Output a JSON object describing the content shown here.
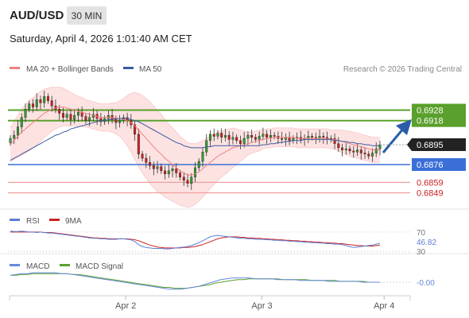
{
  "header": {
    "symbol": "AUD/USD",
    "interval": "30 MIN",
    "datetime": "Saturday, April 4, 2026 1:01:40 AM CET"
  },
  "legend": {
    "ma20": "MA 20 + Bollinger Bands",
    "ma50": "MA 50",
    "copyright": "Research © 2026 Trading Central"
  },
  "colors": {
    "ma20": "#f08080",
    "ma50": "#3a5ba0",
    "bollinger": "#fde2e2",
    "resistance": "#5aa02c",
    "support": "#3a6fd8",
    "support_extra": "#f0a0a0",
    "price_box": "#222222",
    "arrow": "#2a5ca8",
    "rsi": "#5b7fd6",
    "rsi_ma": "#cc2222",
    "macd": "#6688dd",
    "macd_signal": "#5aa02c",
    "candle_up": "#2e9e2e",
    "candle_down": "#cc2222"
  },
  "chart_data": [
    {
      "type": "candlestick",
      "name": "price",
      "y_range": [
        0.6838,
        0.6955
      ],
      "current_price": "0.6895",
      "levels": [
        {
          "value": 0.6928,
          "label": "0.6928",
          "kind": "resistance"
        },
        {
          "value": 0.6918,
          "label": "0.6918",
          "kind": "resistance"
        },
        {
          "value": 0.6876,
          "label": "0.6876",
          "kind": "support"
        },
        {
          "value": 0.6859,
          "label": "0.6859",
          "kind": "support2"
        },
        {
          "value": 0.6849,
          "label": "0.6849",
          "kind": "support2"
        }
      ],
      "close": [
        0.6901,
        0.6904,
        0.6912,
        0.6921,
        0.6929,
        0.6934,
        0.6931,
        0.6938,
        0.6935,
        0.6941,
        0.6937,
        0.6932,
        0.6929,
        0.6925,
        0.6921,
        0.6924,
        0.6919,
        0.6923,
        0.6926,
        0.6922,
        0.6918,
        0.6921,
        0.6924,
        0.692,
        0.6917,
        0.692,
        0.6923,
        0.6919,
        0.6916,
        0.6918,
        0.6921,
        0.6918,
        0.6914,
        0.6905,
        0.6886,
        0.6882,
        0.6878,
        0.6875,
        0.6872,
        0.6874,
        0.687,
        0.6867,
        0.687,
        0.6872,
        0.6868,
        0.6864,
        0.6861,
        0.6858,
        0.6864,
        0.6873,
        0.6879,
        0.6888,
        0.6899,
        0.6905,
        0.6903,
        0.6906,
        0.6902,
        0.6904,
        0.69,
        0.6902,
        0.6899,
        0.6896,
        0.6901,
        0.6904,
        0.6902,
        0.69,
        0.6903,
        0.6905,
        0.6902,
        0.6904,
        0.6903,
        0.6901,
        0.69,
        0.6902,
        0.6899,
        0.6901,
        0.6902,
        0.69,
        0.6901,
        0.6903,
        0.6902,
        0.6901,
        0.6903,
        0.6902,
        0.69,
        0.6901,
        0.6896,
        0.6892,
        0.689,
        0.6891,
        0.6889,
        0.6888,
        0.689,
        0.6887,
        0.6886,
        0.6884,
        0.6887,
        0.6891,
        0.6895
      ],
      "ma20": [
        0.6895,
        0.6899,
        0.6903,
        0.6907,
        0.691,
        0.6913,
        0.6916,
        0.6919,
        0.6922,
        0.6925,
        0.6927,
        0.6929,
        0.693,
        0.6931,
        0.6931,
        0.693,
        0.6929,
        0.6928,
        0.6927,
        0.6926,
        0.6925,
        0.6924,
        0.6923,
        0.6922,
        0.6921,
        0.6921,
        0.6921,
        0.6921,
        0.692,
        0.692,
        0.6919,
        0.6918,
        0.6916,
        0.6913,
        0.6909,
        0.6905,
        0.6901,
        0.6897,
        0.6893,
        0.6889,
        0.6886,
        0.6882,
        0.6879,
        0.6876,
        0.6873,
        0.687,
        0.6868,
        0.6866,
        0.6866,
        0.6867,
        0.6869,
        0.6872,
        0.6875,
        0.6878,
        0.6881,
        0.6884,
        0.6886,
        0.6888,
        0.689,
        0.6892,
        0.6893,
        0.6894,
        0.6895,
        0.6896,
        0.6897,
        0.6898,
        0.6899,
        0.69,
        0.6901,
        0.6901,
        0.6902,
        0.6902,
        0.6902,
        0.6902,
        0.6902,
        0.6902,
        0.6901,
        0.6901,
        0.6901,
        0.6901,
        0.6901,
        0.6901,
        0.6901,
        0.6901,
        0.6901,
        0.69,
        0.69,
        0.6899,
        0.6898,
        0.6897,
        0.6896,
        0.6895,
        0.6894,
        0.6893,
        0.6892,
        0.6891,
        0.689,
        0.689,
        0.689
      ],
      "ma50": [
        0.688,
        0.6882,
        0.6884,
        0.6886,
        0.6888,
        0.689,
        0.6892,
        0.6894,
        0.6896,
        0.6898,
        0.69,
        0.6902,
        0.6904,
        0.6905,
        0.6907,
        0.6908,
        0.691,
        0.6911,
        0.6912,
        0.6913,
        0.6914,
        0.6915,
        0.6916,
        0.6917,
        0.6918,
        0.6918,
        0.6919,
        0.6919,
        0.692,
        0.692,
        0.692,
        0.692,
        0.6919,
        0.6918,
        0.6917,
        0.6915,
        0.6913,
        0.6911,
        0.6909,
        0.6907,
        0.6905,
        0.6903,
        0.6901,
        0.6899,
        0.6897,
        0.6896,
        0.6894,
        0.6893,
        0.6892,
        0.6892,
        0.6892,
        0.6892,
        0.6893,
        0.6893,
        0.6894,
        0.6894,
        0.6894,
        0.6894,
        0.6894,
        0.6894,
        0.6894,
        0.6894,
        0.6894,
        0.6894,
        0.6894,
        0.6894,
        0.6894,
        0.6895,
        0.6895,
        0.6896,
        0.6896,
        0.6897,
        0.6897,
        0.6898,
        0.6898,
        0.6899,
        0.6899,
        0.6899,
        0.69,
        0.69,
        0.69,
        0.69,
        0.69,
        0.69,
        0.69,
        0.69,
        0.6899,
        0.6899,
        0.6898,
        0.6898,
        0.6897,
        0.6897,
        0.6896,
        0.6896,
        0.6895,
        0.6895,
        0.6894,
        0.6894,
        0.6894
      ],
      "band_width": [
        0.0016,
        0.0018,
        0.002,
        0.0022,
        0.0023,
        0.0024,
        0.0024,
        0.0024,
        0.0024,
        0.0023,
        0.0022,
        0.0021,
        0.002,
        0.0019,
        0.0018,
        0.0017,
        0.0016,
        0.0015,
        0.0014,
        0.0014,
        0.0013,
        0.0013,
        0.0013,
        0.0013,
        0.0013,
        0.0013,
        0.0013,
        0.0014,
        0.0015,
        0.0017,
        0.002,
        0.0024,
        0.0028,
        0.0032,
        0.0035,
        0.0037,
        0.0038,
        0.0039,
        0.0039,
        0.0039,
        0.0038,
        0.0037,
        0.0036,
        0.0035,
        0.0034,
        0.0033,
        0.0032,
        0.0031,
        0.003,
        0.0029,
        0.0028,
        0.0027,
        0.0026,
        0.0025,
        0.0024,
        0.0023,
        0.0022,
        0.0021,
        0.002,
        0.0019,
        0.0017,
        0.0015,
        0.0013,
        0.0011,
        0.001,
        0.001,
        0.001,
        0.0009,
        0.0009,
        0.0009,
        0.0009,
        0.0009,
        0.0009,
        0.0009,
        0.0009,
        0.0009,
        0.0009,
        0.0009,
        0.0009,
        0.0009,
        0.0009,
        0.0009,
        0.0009,
        0.0009,
        0.0009,
        0.0009,
        0.0009,
        0.001,
        0.0011,
        0.0011,
        0.0012,
        0.0012,
        0.0012,
        0.0012,
        0.0012,
        0.0012,
        0.0012,
        0.0012,
        0.0012
      ]
    },
    {
      "type": "line",
      "name": "RSI",
      "y_range": [
        27,
        78
      ],
      "levels": [
        {
          "value": 70,
          "label": "70"
        },
        {
          "value": 30,
          "label": "30"
        }
      ],
      "current_value": "46.82",
      "legend": [
        "RSI",
        "9MA"
      ],
      "rsi": [
        72,
        71,
        71,
        72,
        71,
        70,
        70,
        69,
        70,
        69,
        68,
        68,
        67,
        66,
        65,
        64,
        63,
        62,
        61,
        60,
        59,
        58,
        57,
        57,
        56,
        56,
        55,
        55,
        55,
        56,
        56,
        55,
        54,
        50,
        44,
        40,
        38,
        37,
        36,
        36,
        36,
        35,
        35,
        36,
        37,
        38,
        39,
        40,
        42,
        45,
        48,
        52,
        56,
        60,
        62,
        63,
        62,
        61,
        60,
        59,
        58,
        57,
        57,
        56,
        56,
        55,
        55,
        55,
        54,
        54,
        53,
        53,
        52,
        52,
        51,
        51,
        50,
        50,
        49,
        49,
        48,
        48,
        47,
        47,
        46,
        46,
        45,
        45,
        44,
        42,
        40,
        38,
        39,
        40,
        41,
        42,
        43,
        45,
        47
      ],
      "ma9": [
        70,
        70,
        70,
        70,
        70,
        70,
        70,
        70,
        70,
        69,
        69,
        69,
        68,
        67,
        66,
        65,
        64,
        63,
        62,
        61,
        60,
        59,
        58,
        58,
        57,
        57,
        56,
        56,
        56,
        56,
        56,
        56,
        55,
        54,
        52,
        49,
        46,
        43,
        41,
        39,
        38,
        37,
        37,
        37,
        37,
        37,
        38,
        38,
        39,
        40,
        42,
        44,
        47,
        50,
        53,
        56,
        58,
        59,
        60,
        60,
        60,
        59,
        59,
        58,
        58,
        57,
        57,
        56,
        56,
        55,
        55,
        54,
        54,
        53,
        53,
        52,
        52,
        51,
        51,
        50,
        50,
        49,
        49,
        48,
        48,
        47,
        47,
        46,
        46,
        45,
        44,
        43,
        42,
        42,
        41,
        41,
        41,
        42,
        43
      ]
    },
    {
      "type": "line",
      "name": "MACD",
      "y_range": [
        -0.0012,
        0.0012
      ],
      "current_value": "-0.00",
      "legend": [
        "MACD",
        "MACD Signal"
      ],
      "macd": [
        0.0008,
        0.0009,
        0.001,
        0.001,
        0.0011,
        0.0011,
        0.0011,
        0.0011,
        0.0011,
        0.001,
        0.001,
        0.0009,
        0.0008,
        0.0007,
        0.0006,
        0.0005,
        0.0004,
        0.0003,
        0.0002,
        0.0001,
        0.0,
        -0.0001,
        -0.0002,
        -0.0003,
        -0.0004,
        -0.0005,
        -0.0006,
        -0.0007,
        -0.0008,
        -0.0008,
        -0.0008,
        -0.0007,
        -0.0006,
        -0.0005,
        -0.0003,
        -0.0001,
        0.0001,
        0.0003,
        0.0004,
        0.0005,
        0.0005,
        0.0005,
        0.0005,
        0.0004,
        0.0004,
        0.0004,
        0.0004,
        0.0003,
        0.0003,
        0.0003,
        0.0003,
        0.0002,
        0.0002,
        0.0002,
        0.0002,
        0.0002,
        0.0001,
        0.0001,
        0.0001,
        0.0001,
        0.0001,
        0.0001,
        0.0,
        0.0,
        0.0,
        -0.0
      ],
      "signal": [
        0.0008,
        0.0008,
        0.0009,
        0.0009,
        0.001,
        0.001,
        0.001,
        0.001,
        0.001,
        0.001,
        0.001,
        0.0009,
        0.0009,
        0.0008,
        0.0007,
        0.0006,
        0.0005,
        0.0004,
        0.0003,
        0.0002,
        0.0001,
        0.0,
        -0.0001,
        -0.0002,
        -0.0003,
        -0.0004,
        -0.0005,
        -0.0006,
        -0.0006,
        -0.0007,
        -0.0007,
        -0.0007,
        -0.0006,
        -0.0005,
        -0.0004,
        -0.0003,
        -0.0001,
        0.0,
        0.0001,
        0.0002,
        0.0003,
        0.0003,
        0.0004,
        0.0004,
        0.0004,
        0.0004,
        0.0004,
        0.0004,
        0.0003,
        0.0003,
        0.0003,
        0.0003,
        0.0003,
        0.0002,
        0.0002,
        0.0002,
        0.0002,
        0.0002,
        0.0001,
        0.0001,
        0.0001,
        0.0001,
        0.0001,
        0.0,
        0.0,
        0.0
      ]
    }
  ],
  "x_axis": {
    "ticks": [
      {
        "label": "Apr 2",
        "frac": 0.29
      },
      {
        "label": "Apr 3",
        "frac": 0.63
      },
      {
        "label": "Apr 4",
        "frac": 0.935
      }
    ]
  }
}
